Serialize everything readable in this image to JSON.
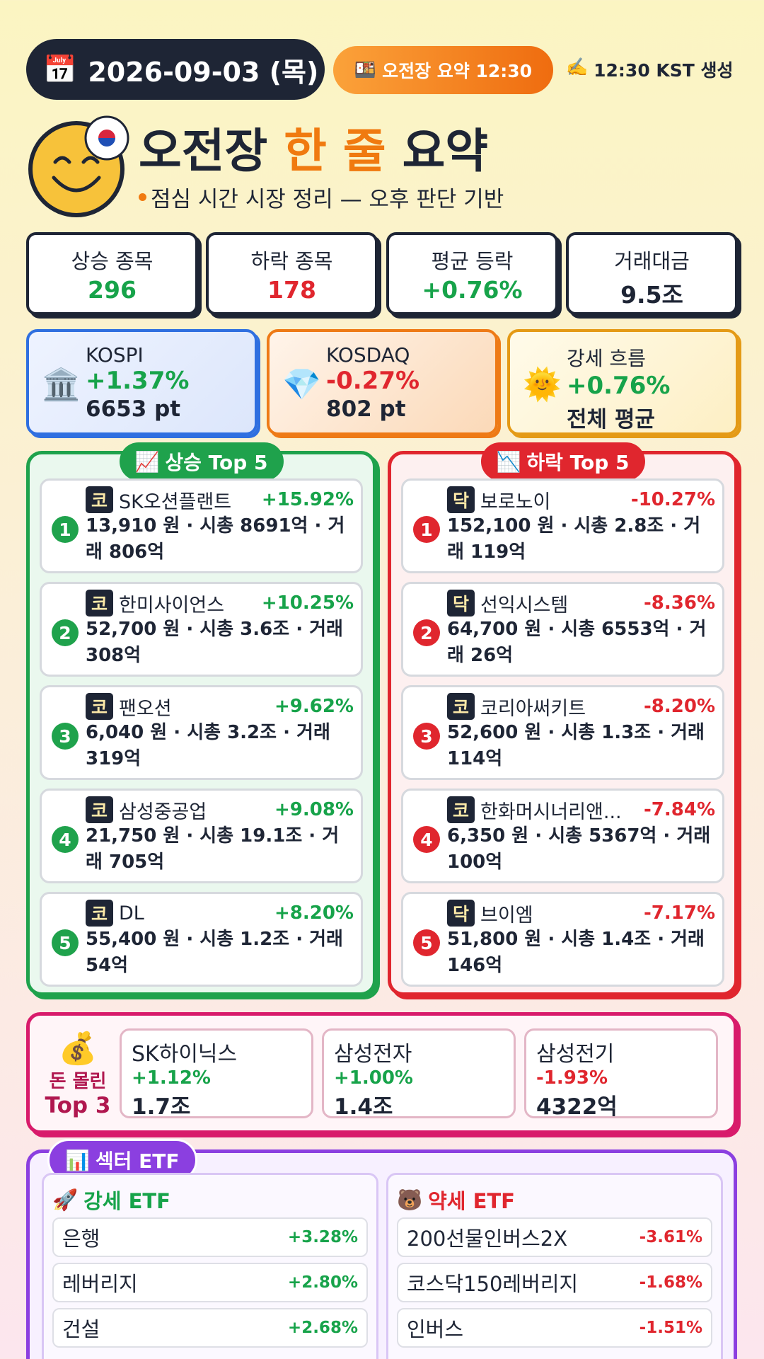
{
  "header": {
    "date": "2026-09-03 (목)",
    "session_badge": "오전장 요약 12:30",
    "generated": "12:30 KST 생성"
  },
  "title": {
    "prefix": "오전장",
    "highlight": "한 줄",
    "suffix": "요약",
    "subtitle": "점심 시간 시장 정리 — 오후 판단 기반"
  },
  "stats": [
    {
      "label": "상승 종목",
      "value": "296"
    },
    {
      "label": "하락 종목",
      "value": "178"
    },
    {
      "label": "평균 등락",
      "value": "+0.76%"
    },
    {
      "label": "거래대금",
      "value": "9.5조"
    }
  ],
  "indices": [
    {
      "name": "KOSPI",
      "change": "+1.37%",
      "level": "6653 pt"
    },
    {
      "name": "KOSDAQ",
      "change": "-0.27%",
      "level": "802 pt"
    },
    {
      "name": "강세 흐름",
      "change": "+0.76%",
      "level": "전체 평균"
    }
  ],
  "gainers": {
    "title": "상승 Top 5",
    "items": [
      {
        "rank": 1,
        "market": "코",
        "name": "SK오션플랜트",
        "change": "+15.92%",
        "detail": "13,910 원 · 시총 8691억 · 거래 806억"
      },
      {
        "rank": 2,
        "market": "코",
        "name": "한미사이언스",
        "change": "+10.25%",
        "detail": "52,700 원 · 시총 3.6조 · 거래 308억"
      },
      {
        "rank": 3,
        "market": "코",
        "name": "팬오션",
        "change": "+9.62%",
        "detail": "6,040 원 · 시총 3.2조 · 거래 319억"
      },
      {
        "rank": 4,
        "market": "코",
        "name": "삼성중공업",
        "change": "+9.08%",
        "detail": "21,750 원 · 시총 19.1조 · 거래 705억"
      },
      {
        "rank": 5,
        "market": "코",
        "name": "DL",
        "change": "+8.20%",
        "detail": "55,400 원 · 시총 1.2조 · 거래 54억"
      }
    ]
  },
  "losers": {
    "title": "하락 Top 5",
    "items": [
      {
        "rank": 1,
        "market": "닥",
        "name": "보로노이",
        "change": "-10.27%",
        "detail": "152,100 원 · 시총 2.8조 · 거래 119억"
      },
      {
        "rank": 2,
        "market": "닥",
        "name": "선익시스템",
        "change": "-8.36%",
        "detail": "64,700 원 · 시총 6553억 · 거래 26억"
      },
      {
        "rank": 3,
        "market": "코",
        "name": "코리아써키트",
        "change": "-8.20%",
        "detail": "52,600 원 · 시총 1.3조 · 거래 114억"
      },
      {
        "rank": 4,
        "market": "코",
        "name": "한화머시너리앤...",
        "change": "-7.84%",
        "detail": "6,350 원 · 시총 5367억 · 거래 100억"
      },
      {
        "rank": 5,
        "market": "닥",
        "name": "브이엠",
        "change": "-7.17%",
        "detail": "51,800 원 · 시총 1.4조 · 거래 146억"
      }
    ]
  },
  "money": {
    "title_line1": "돈 몰린",
    "title_line2": "Top 3",
    "items": [
      {
        "name": "SK하이닉스",
        "change": "+1.12%",
        "amount": "1.7조"
      },
      {
        "name": "삼성전자",
        "change": "+1.00%",
        "amount": "1.4조"
      },
      {
        "name": "삼성전기",
        "change": "-1.93%",
        "amount": "4322억"
      }
    ]
  },
  "etf": {
    "title": "섹터 ETF",
    "strong": {
      "title": "강세 ETF",
      "items": [
        {
          "name": "은행",
          "change": "+3.28%"
        },
        {
          "name": "레버리지",
          "change": "+2.80%"
        },
        {
          "name": "건설",
          "change": "+2.68%"
        }
      ]
    },
    "weak": {
      "title": "약세 ETF",
      "items": [
        {
          "name": "200선물인버스2X",
          "change": "-3.61%"
        },
        {
          "name": "코스닥150레버리지",
          "change": "-1.68%"
        },
        {
          "name": "인버스",
          "change": "-1.51%"
        }
      ]
    }
  }
}
